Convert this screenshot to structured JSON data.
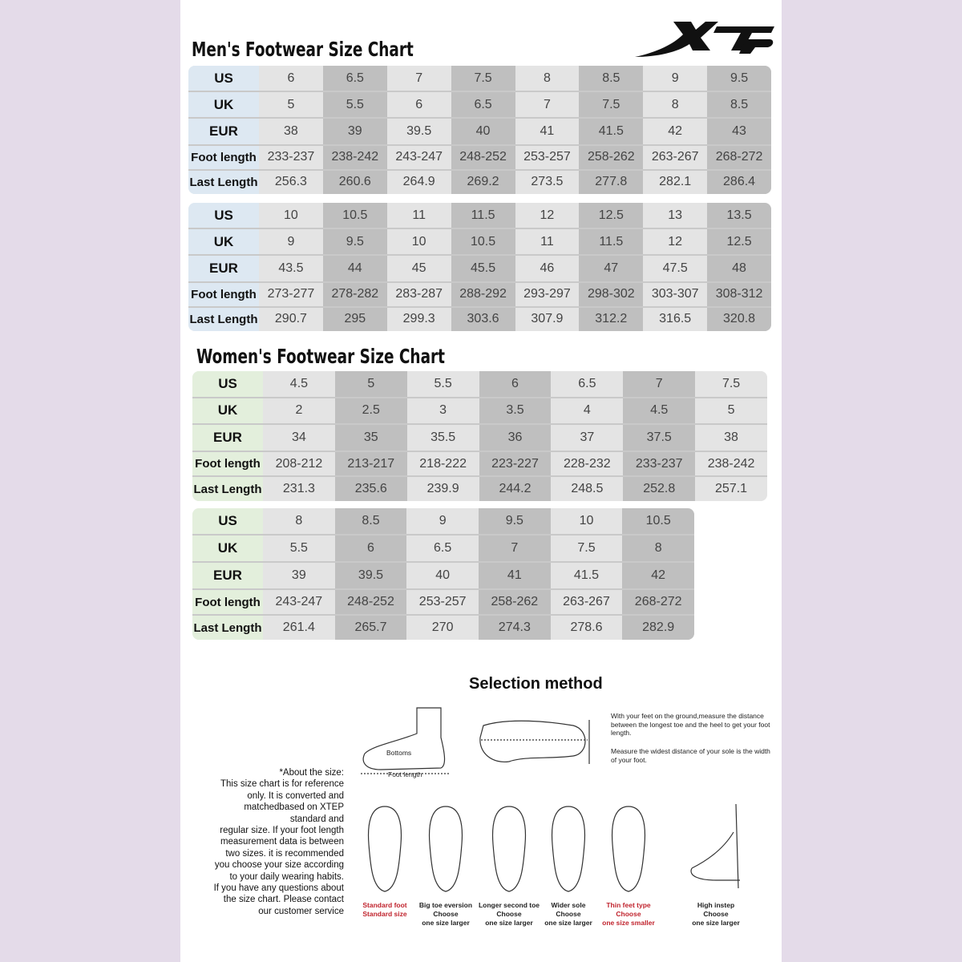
{
  "brand": {
    "logo_text": "XTEP"
  },
  "mens": {
    "title": "Men's Footwear Size Chart",
    "row_labels": [
      "US",
      "UK",
      "EUR",
      "Foot length",
      "Last Length"
    ],
    "tables": [
      {
        "columns": [
          [
            "6",
            "5",
            "38",
            "233-237",
            "256.3"
          ],
          [
            "6.5",
            "5.5",
            "39",
            "238-242",
            "260.6"
          ],
          [
            "7",
            "6",
            "39.5",
            "243-247",
            "264.9"
          ],
          [
            "7.5",
            "6.5",
            "40",
            "248-252",
            "269.2"
          ],
          [
            "8",
            "7",
            "41",
            "253-257",
            "273.5"
          ],
          [
            "8.5",
            "7.5",
            "41.5",
            "258-262",
            "277.8"
          ],
          [
            "9",
            "8",
            "42",
            "263-267",
            "282.1"
          ],
          [
            "9.5",
            "8.5",
            "43",
            "268-272",
            "286.4"
          ]
        ]
      },
      {
        "columns": [
          [
            "10",
            "9",
            "43.5",
            "273-277",
            "290.7"
          ],
          [
            "10.5",
            "9.5",
            "44",
            "278-282",
            "295"
          ],
          [
            "11",
            "10",
            "45",
            "283-287",
            "299.3"
          ],
          [
            "11.5",
            "10.5",
            "45.5",
            "288-292",
            "303.6"
          ],
          [
            "12",
            "11",
            "46",
            "293-297",
            "307.9"
          ],
          [
            "12.5",
            "11.5",
            "47",
            "298-302",
            "312.2"
          ],
          [
            "13",
            "12",
            "47.5",
            "303-307",
            "316.5"
          ],
          [
            "13.5",
            "12.5",
            "48",
            "308-312",
            "320.8"
          ]
        ]
      }
    ]
  },
  "womens": {
    "title": "Women's Footwear Size Chart",
    "row_labels": [
      "US",
      "UK",
      "EUR",
      "Foot length",
      "Last Length"
    ],
    "tables": [
      {
        "columns": [
          [
            "4.5",
            "2",
            "34",
            "208-212",
            "231.3"
          ],
          [
            "5",
            "2.5",
            "35",
            "213-217",
            "235.6"
          ],
          [
            "5.5",
            "3",
            "35.5",
            "218-222",
            "239.9"
          ],
          [
            "6",
            "3.5",
            "36",
            "223-227",
            "244.2"
          ],
          [
            "6.5",
            "4",
            "37",
            "228-232",
            "248.5"
          ],
          [
            "7",
            "4.5",
            "37.5",
            "233-237",
            "252.8"
          ],
          [
            "7.5",
            "5",
            "38",
            "238-242",
            "257.1"
          ]
        ]
      },
      {
        "columns": [
          [
            "8",
            "5.5",
            "39",
            "243-247",
            "261.4"
          ],
          [
            "8.5",
            "6",
            "39.5",
            "248-252",
            "265.7"
          ],
          [
            "9",
            "6.5",
            "40",
            "253-257",
            "270"
          ],
          [
            "9.5",
            "7",
            "41",
            "258-262",
            "274.3"
          ],
          [
            "10",
            "7.5",
            "41.5",
            "263-267",
            "278.6"
          ],
          [
            "10.5",
            "8",
            "42",
            "268-272",
            "282.9"
          ]
        ]
      }
    ]
  },
  "selection": {
    "title": "Selection method",
    "diagram_labels": {
      "bottoms": "Bottoms",
      "foot_length": "Foot length"
    },
    "instructions": [
      "With your feet on the ground,measure the distance between the longest toe and the heel to get your foot length.",
      "Measure the widest distance of your sole is the width of your foot."
    ],
    "about": [
      "*About the size:",
      "This size chart is for reference",
      "only. It is converted and",
      "matchedbased on XTEP",
      "standard and",
      "regular size. If your foot length",
      "measurement data is between",
      "two sizes. it is recommended",
      "you choose your size according",
      "to your daily wearing habits.",
      "If you have any questions about",
      "the size chart. Please contact",
      "our customer service"
    ],
    "foot_types": [
      {
        "lines": [
          "Standard foot",
          "Standard size"
        ],
        "highlight": true
      },
      {
        "lines": [
          "Big toe eversion",
          "Choose",
          "one size larger"
        ],
        "highlight": false
      },
      {
        "lines": [
          "Longer second toe",
          "Choose",
          "one size larger"
        ],
        "highlight": false
      },
      {
        "lines": [
          "Wider sole",
          "Choose",
          "one size larger"
        ],
        "highlight": false
      },
      {
        "lines": [
          "Thin feet type",
          "Choose",
          "one size smaller"
        ],
        "highlight": true
      },
      {
        "lines": [
          "High instep",
          "Choose",
          "one size larger"
        ],
        "highlight": false
      }
    ],
    "highlight_color": "#c0232d"
  }
}
